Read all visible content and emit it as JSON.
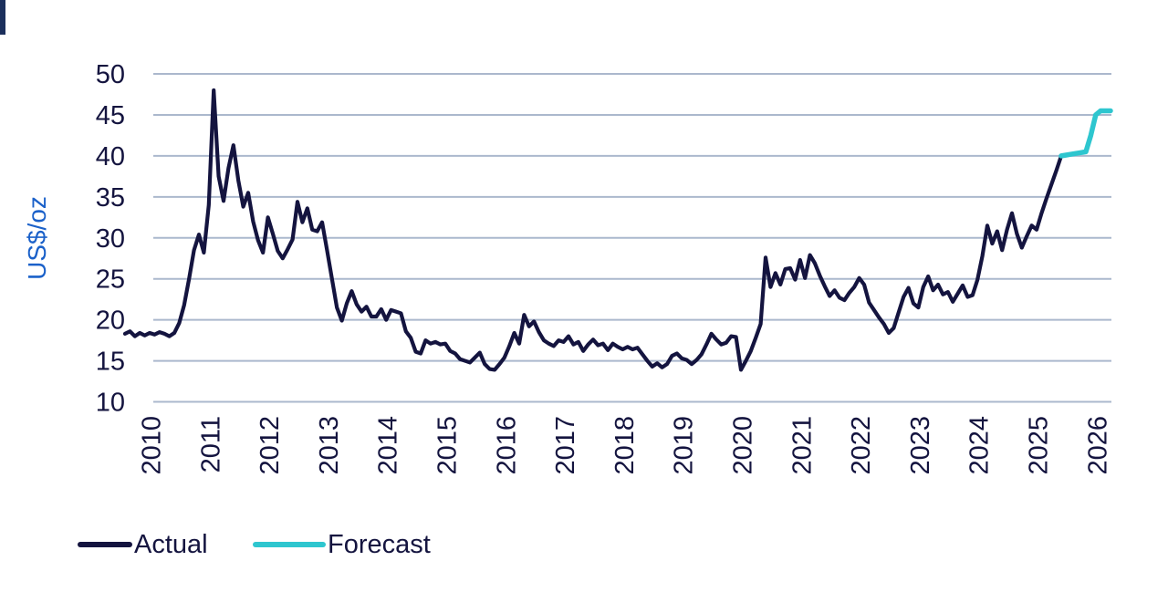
{
  "page": {
    "background": "#ffffff"
  },
  "colors": {
    "actual_line": "#14143F",
    "forecast_line": "#2EC6CF",
    "gridline": "#ABB8CD",
    "axis_text": "#14143F",
    "y_axis_title": "#1B61C9",
    "corner_bar": "#1B2F5C"
  },
  "chart_data": {
    "type": "line",
    "title": "",
    "xlabel": "",
    "ylabel": "US$/oz",
    "ylim": [
      10,
      50
    ],
    "y_ticks": [
      10,
      15,
      20,
      25,
      30,
      35,
      40,
      45,
      50
    ],
    "x_tick_labels": [
      "2010",
      "2011",
      "2012",
      "2013",
      "2014",
      "2015",
      "2016",
      "2017",
      "2018",
      "2019",
      "2020",
      "2021",
      "2022",
      "2023",
      "2024",
      "2025",
      "2026"
    ],
    "grid": "horizontal-only",
    "legend_position": "bottom-left",
    "frequency": "monthly",
    "series": [
      {
        "name": "Actual",
        "color": "#14143F",
        "start_index": 0,
        "values": [
          18.3,
          18.6,
          18.0,
          18.4,
          18.1,
          18.4,
          18.2,
          18.5,
          18.3,
          18.0,
          18.4,
          19.6,
          21.8,
          25.0,
          28.5,
          30.4,
          28.2,
          34.0,
          48.0,
          37.5,
          34.5,
          38.5,
          41.3,
          37.0,
          33.8,
          35.5,
          32.0,
          29.7,
          28.2,
          32.5,
          30.5,
          28.4,
          27.5,
          28.6,
          29.8,
          34.4,
          31.9,
          33.6,
          31.0,
          30.8,
          31.9,
          28.5,
          25.0,
          21.5,
          19.9,
          22.0,
          23.5,
          21.9,
          21.0,
          21.6,
          20.4,
          20.4,
          21.3,
          20.0,
          21.2,
          21.0,
          20.8,
          18.6,
          17.8,
          16.1,
          15.9,
          17.5,
          17.1,
          17.3,
          17.0,
          17.1,
          16.2,
          15.9,
          15.2,
          15.0,
          14.8,
          15.4,
          16.0,
          14.6,
          14.0,
          13.9,
          14.6,
          15.4,
          16.8,
          18.4,
          17.1,
          20.6,
          19.2,
          19.8,
          18.5,
          17.5,
          17.1,
          16.8,
          17.5,
          17.3,
          18.0,
          17.0,
          17.3,
          16.2,
          17.0,
          17.6,
          16.9,
          17.1,
          16.3,
          17.1,
          16.7,
          16.4,
          16.7,
          16.4,
          16.6,
          15.8,
          15.0,
          14.3,
          14.7,
          14.2,
          14.6,
          15.6,
          15.9,
          15.3,
          15.1,
          14.6,
          15.1,
          15.8,
          17.0,
          18.3,
          17.6,
          17.0,
          17.2,
          18.0,
          17.9,
          13.9,
          15.0,
          16.2,
          17.8,
          19.5,
          27.6,
          24.0,
          25.7,
          24.3,
          26.2,
          26.3,
          24.9,
          27.3,
          25.1,
          27.9,
          26.9,
          25.4,
          24.1,
          22.9,
          23.6,
          22.7,
          22.4,
          23.3,
          24.0,
          25.1,
          24.3,
          22.1,
          21.2,
          20.3,
          19.5,
          18.4,
          19.0,
          20.9,
          22.8,
          23.9,
          22.0,
          21.5,
          24.0,
          25.3,
          23.6,
          24.3,
          23.1,
          23.4,
          22.2,
          23.2,
          24.2,
          22.8,
          23.0,
          24.9,
          27.8,
          31.5,
          29.3,
          30.8,
          28.5,
          31.0,
          33.0,
          30.5,
          28.8,
          30.2,
          31.5,
          31.0,
          33.0,
          34.8,
          36.5,
          38.2,
          40.0
        ]
      },
      {
        "name": "Forecast",
        "color": "#2EC6CF",
        "start_index": 190,
        "values": [
          40.0,
          40.1,
          40.2,
          40.3,
          40.4,
          40.5,
          42.5,
          45.0,
          45.5,
          45.5,
          45.5
        ]
      }
    ]
  },
  "legend": {
    "actual_label": "Actual",
    "forecast_label": "Forecast"
  }
}
